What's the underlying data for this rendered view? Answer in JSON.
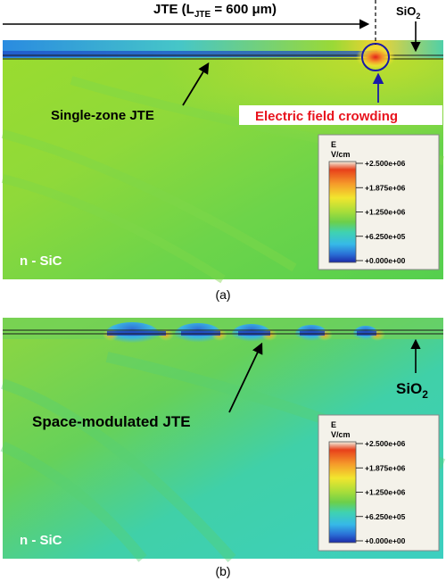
{
  "panel_a": {
    "jte_label_main": "JTE (L",
    "jte_label_sub": "JTE",
    "jte_label_rest": " = 600 μm)",
    "sio2_main": "SiO",
    "sio2_sub": "2",
    "single_zone_label": "Single-zone JTE",
    "crowding_label": "Electric field crowding",
    "substrate_label": "n - SiC",
    "caption": "(a)"
  },
  "panel_b": {
    "space_label": "Space-modulated JTE",
    "sio2_main": "SiO",
    "sio2_sub": "2",
    "substrate_label": "n - SiC",
    "caption": "(b)"
  },
  "legend": {
    "title_line1": "E",
    "title_line2": "V/cm",
    "ticks": [
      "+2.500e+06",
      "+1.875e+06",
      "+1.250e+06",
      "+6.250e+05",
      "+0.000e+00"
    ]
  },
  "colors": {
    "scale": [
      "#f2f0e0",
      "#e8401a",
      "#f59a2a",
      "#f2e62e",
      "#a6dd3a",
      "#6ccf4a",
      "#3fd2b0",
      "#36b9e8",
      "#2a6fd6",
      "#1c2aa8"
    ],
    "crowding_text": "#e8141e",
    "circle": "#1a1aa8"
  }
}
